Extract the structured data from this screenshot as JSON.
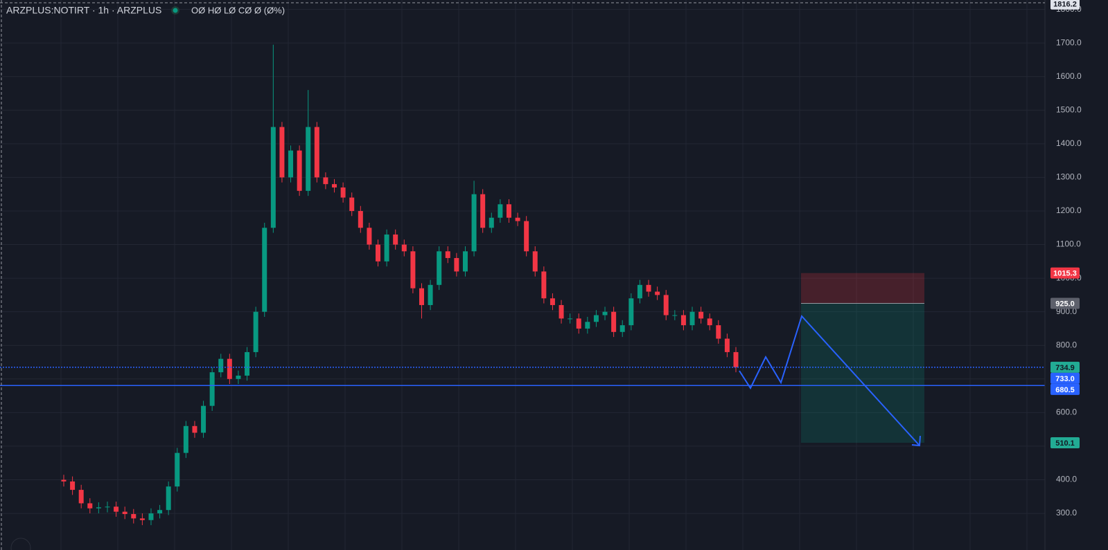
{
  "chart_data": {
    "type": "candlestick",
    "title": "ARZPLUS:NOTIRT · 1h · ARZPLUS",
    "ohlc_legend": "OØ HØ LØ CØ Ø (Ø%)",
    "up_color": "#089981",
    "down_color": "#f23645",
    "ylim": [
      191,
      1828
    ],
    "yticks": [
      {
        "value": 300,
        "label": "300.0"
      },
      {
        "value": 400,
        "label": "400.0"
      },
      {
        "value": 500,
        "label": "500.0"
      },
      {
        "value": 600,
        "label": "600.0"
      },
      {
        "value": 700,
        "label": "700.0"
      },
      {
        "value": 800,
        "label": "800.0"
      },
      {
        "value": 900,
        "label": "900.0"
      },
      {
        "value": 1000,
        "label": "1000.0"
      },
      {
        "value": 1100,
        "label": "1100.0"
      },
      {
        "value": 1200,
        "label": "1200.0"
      },
      {
        "value": 1300,
        "label": "1300.0"
      },
      {
        "value": 1400,
        "label": "1400.0"
      },
      {
        "value": 1500,
        "label": "1500.0"
      },
      {
        "value": 1600,
        "label": "1600.0"
      },
      {
        "value": 1700,
        "label": "1700.0"
      },
      {
        "value": 1800,
        "label": "1800.0"
      }
    ],
    "grid": true,
    "open": [
      400,
      395,
      370,
      330,
      315,
      318,
      320,
      305,
      298,
      285,
      280,
      300,
      310,
      380,
      480,
      560,
      540,
      620,
      720,
      760,
      700,
      710,
      780,
      900,
      1150,
      1450,
      1300,
      1380,
      1260,
      1450,
      1300,
      1280,
      1270,
      1240,
      1200,
      1150,
      1100,
      1050,
      1130,
      1100,
      1080,
      970,
      920,
      980,
      1080,
      1060,
      1020,
      1080,
      1250,
      1150,
      1180,
      1220,
      1180,
      1170,
      1080,
      1020,
      940,
      920,
      880,
      880,
      850,
      870,
      890,
      900,
      840,
      860,
      940,
      980,
      960,
      950,
      890,
      890,
      860,
      900,
      880,
      860,
      820,
      780
    ],
    "high": [
      415,
      410,
      385,
      345,
      333,
      335,
      335,
      320,
      313,
      300,
      315,
      325,
      395,
      495,
      575,
      575,
      635,
      735,
      775,
      775,
      725,
      795,
      915,
      1165,
      1695,
      1465,
      1395,
      1395,
      1560,
      1465,
      1315,
      1295,
      1285,
      1255,
      1215,
      1165,
      1115,
      1145,
      1145,
      1115,
      1095,
      985,
      995,
      1095,
      1095,
      1075,
      1095,
      1290,
      1265,
      1195,
      1235,
      1235,
      1195,
      1185,
      1095,
      1035,
      955,
      935,
      895,
      895,
      885,
      905,
      915,
      915,
      875,
      955,
      995,
      995,
      975,
      965,
      905,
      905,
      915,
      915,
      895,
      875,
      835,
      795
    ],
    "low": [
      380,
      355,
      315,
      300,
      300,
      303,
      290,
      283,
      270,
      265,
      265,
      285,
      295,
      365,
      465,
      525,
      525,
      605,
      705,
      685,
      685,
      695,
      765,
      885,
      1135,
      1285,
      1285,
      1245,
      1245,
      1285,
      1265,
      1255,
      1225,
      1185,
      1135,
      1085,
      1035,
      1035,
      1085,
      1065,
      955,
      880,
      905,
      965,
      1045,
      1005,
      1005,
      1065,
      1135,
      1135,
      1165,
      1165,
      1155,
      1065,
      1005,
      925,
      905,
      865,
      865,
      835,
      835,
      855,
      875,
      825,
      825,
      845,
      925,
      945,
      935,
      875,
      875,
      845,
      845,
      865,
      845,
      805,
      765,
      720
    ],
    "close": [
      395,
      370,
      330,
      315,
      318,
      320,
      305,
      298,
      285,
      280,
      300,
      310,
      380,
      480,
      560,
      540,
      620,
      720,
      760,
      700,
      710,
      780,
      900,
      1150,
      1450,
      1300,
      1380,
      1260,
      1450,
      1300,
      1280,
      1270,
      1240,
      1200,
      1150,
      1100,
      1050,
      1130,
      1100,
      1080,
      970,
      920,
      980,
      1080,
      1060,
      1020,
      1080,
      1250,
      1150,
      1180,
      1220,
      1180,
      1170,
      1080,
      1020,
      940,
      920,
      880,
      880,
      850,
      870,
      890,
      900,
      840,
      860,
      940,
      980,
      960,
      950,
      890,
      890,
      860,
      900,
      880,
      860,
      820,
      780,
      735
    ],
    "price_labels": [
      {
        "value": 1816.2,
        "label": "1816.2",
        "color": "#e0e3eb",
        "text_color": "#131722"
      },
      {
        "value": 1015.3,
        "label": "1015.3",
        "color": "#f23645",
        "text_color": "#ffffff"
      },
      {
        "value": 925.0,
        "label": "925.0",
        "color": "#5d606b",
        "text_color": "#ffffff"
      },
      {
        "value": 734.9,
        "label": "734.9",
        "color": "#22ab94",
        "text_color": "#131722",
        "line": "dotted"
      },
      {
        "value": 733.0,
        "label": "733.0",
        "color": "#2962ff",
        "text_color": "#ffffff"
      },
      {
        "value": 680.5,
        "label": "680.5",
        "color": "#2962ff",
        "text_color": "#ffffff",
        "line": "solid"
      },
      {
        "value": 510.1,
        "label": "510.1",
        "color": "#22ab94",
        "text_color": "#131722"
      }
    ]
  }
}
